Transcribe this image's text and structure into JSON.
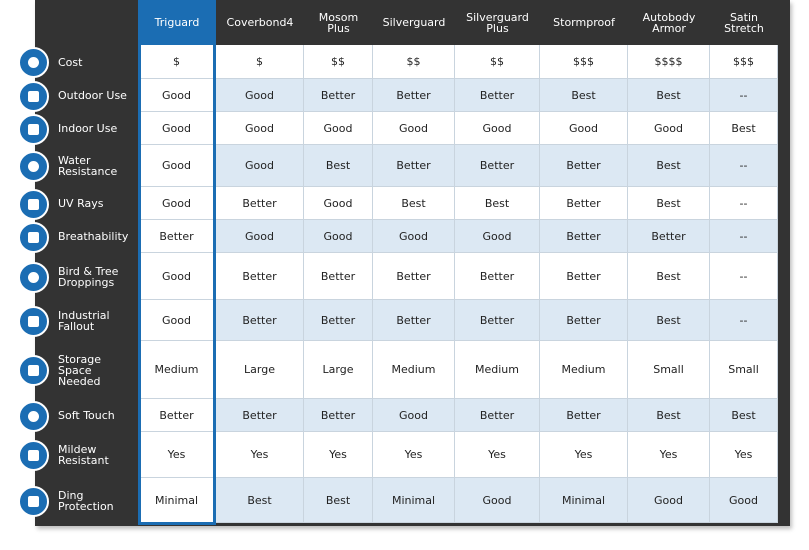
{
  "table": {
    "columns": [
      "Triguard",
      "Coverbond4",
      "Mosom\nPlus",
      "Silverguard",
      "Silverguard\nPlus",
      "Stormproof",
      "Autobody\nArmor",
      "Satin\nStretch"
    ],
    "rows": [
      {
        "label": "Cost",
        "values": [
          "$",
          "$",
          "$$",
          "$$",
          "$$",
          "$$$",
          "$$$$",
          "$$$"
        ]
      },
      {
        "label": "Outdoor Use",
        "values": [
          "Good",
          "Good",
          "Better",
          "Better",
          "Better",
          "Best",
          "Best",
          "--"
        ]
      },
      {
        "label": "Indoor Use",
        "values": [
          "Good",
          "Good",
          "Good",
          "Good",
          "Good",
          "Good",
          "Good",
          "Best"
        ]
      },
      {
        "label": "Water\nResistance",
        "values": [
          "Good",
          "Good",
          "Best",
          "Better",
          "Better",
          "Better",
          "Best",
          "--"
        ]
      },
      {
        "label": "UV Rays",
        "values": [
          "Good",
          "Better",
          "Good",
          "Best",
          "Best",
          "Better",
          "Best",
          "--"
        ]
      },
      {
        "label": "Breathability",
        "values": [
          "Better",
          "Good",
          "Good",
          "Good",
          "Good",
          "Better",
          "Better",
          "--"
        ]
      },
      {
        "label": "Bird & Tree\nDroppings",
        "values": [
          "Good",
          "Better",
          "Better",
          "Better",
          "Better",
          "Better",
          "Best",
          "--"
        ]
      },
      {
        "label": "Industrial\nFallout",
        "values": [
          "Good",
          "Better",
          "Better",
          "Better",
          "Better",
          "Better",
          "Best",
          "--"
        ]
      },
      {
        "label": "Storage\nSpace\nNeeded",
        "values": [
          "Medium",
          "Large",
          "Large",
          "Medium",
          "Medium",
          "Medium",
          "Small",
          "Small"
        ]
      },
      {
        "label": "Soft Touch",
        "values": [
          "Better",
          "Better",
          "Better",
          "Good",
          "Better",
          "Better",
          "Best",
          "Best"
        ]
      },
      {
        "label": "Mildew\nResistant",
        "values": [
          "Yes",
          "Yes",
          "Yes",
          "Yes",
          "Yes",
          "Yes",
          "Yes",
          "Yes"
        ]
      },
      {
        "label": "Ding\nProtection",
        "values": [
          "Minimal",
          "Best",
          "Best",
          "Minimal",
          "Good",
          "Minimal",
          "Good",
          "Good"
        ]
      }
    ]
  }
}
